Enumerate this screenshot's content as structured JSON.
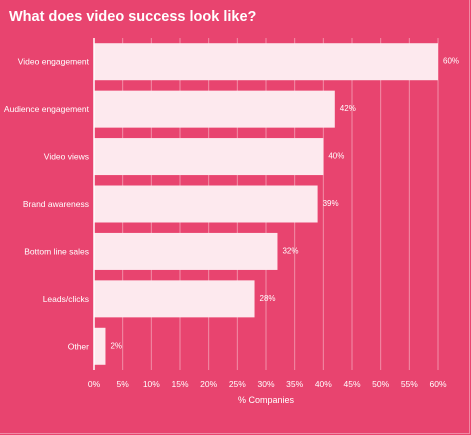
{
  "chart_data": {
    "type": "bar",
    "orientation": "horizontal",
    "title": "What does video success look like?",
    "xlabel": "% Companies",
    "ylabel": "",
    "categories": [
      "Video engagement",
      "Audience engagement",
      "Video views",
      "Brand awareness",
      "Bottom line sales",
      "Leads/clicks",
      "Other"
    ],
    "values": [
      60,
      42,
      40,
      39,
      32,
      28,
      2
    ],
    "data_labels": [
      "60%",
      "42%",
      "40%",
      "39%",
      "32%",
      "28%",
      "2%"
    ],
    "xlim": [
      0,
      60
    ],
    "xticks": [
      0,
      5,
      10,
      15,
      20,
      25,
      30,
      35,
      40,
      45,
      50,
      55,
      60
    ],
    "xtick_labels": [
      "0%",
      "5%",
      "10%",
      "15%",
      "20%",
      "25%",
      "30%",
      "35%",
      "40%",
      "45%",
      "50%",
      "55%",
      "60%"
    ],
    "grid": "vertical",
    "legend": "none",
    "colors": {
      "background": "#e8446f",
      "bar": "#fde9ee",
      "text": "#ffffff",
      "grid": "#f28fa8",
      "axis": "#ffffff"
    }
  }
}
